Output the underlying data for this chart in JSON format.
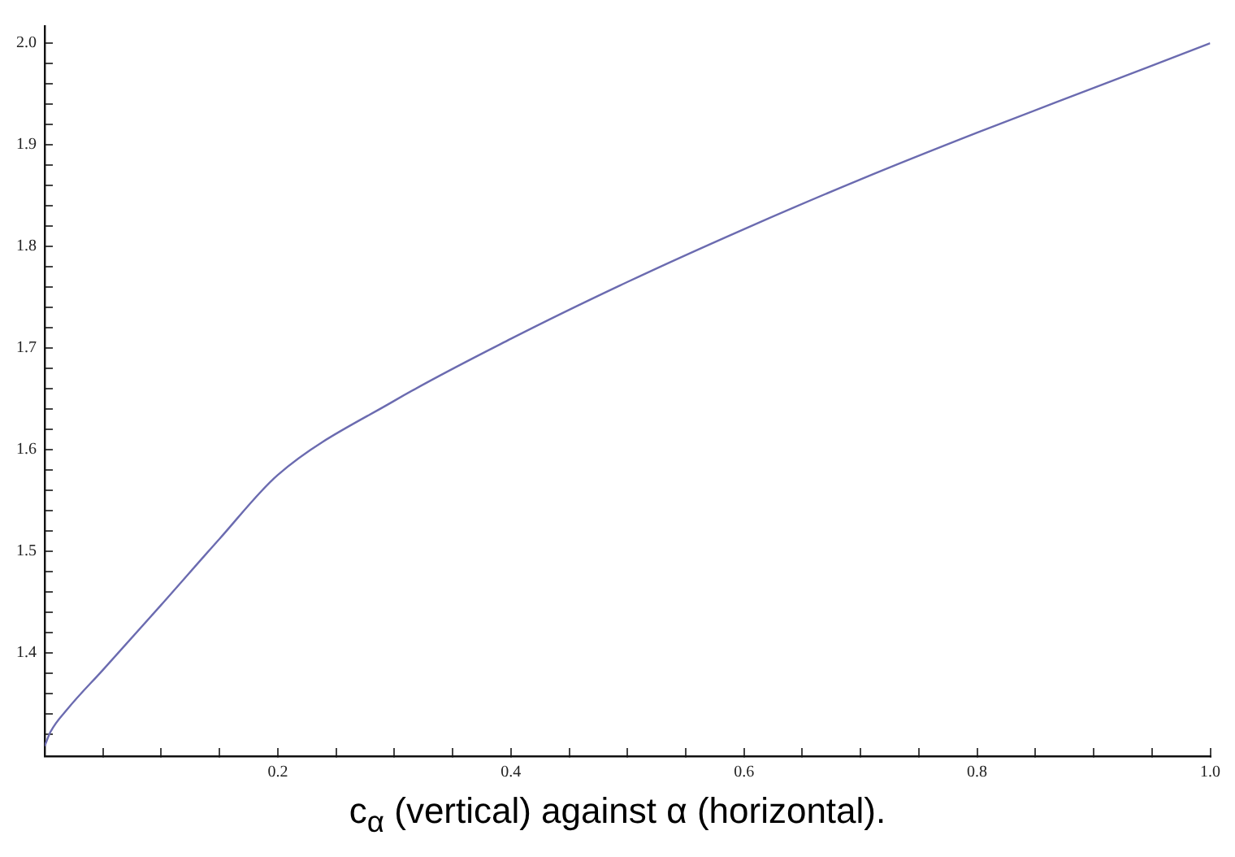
{
  "chart_data": {
    "type": "line",
    "annotations": [
      "c$_{α}$ (vertical) against α (horizontal)."
    ],
    "x": [
      0,
      0.005,
      0.02,
      0.05,
      0.1,
      0.15,
      0.2,
      0.3,
      0.4,
      0.5,
      0.6,
      0.7,
      0.8,
      0.9,
      1.0
    ],
    "series": [
      {
        "color": "#6b6bb0",
        "values": [
          1.308,
          1.322,
          1.345,
          1.383,
          1.447,
          1.512,
          1.575,
          1.648,
          1.709,
          1.765,
          1.817,
          1.866,
          1.912,
          1.956,
          2.0
        ]
      }
    ],
    "xlim": [
      0,
      1.0
    ],
    "ylim": [
      1.298,
      2.017
    ],
    "xticks": [
      {
        "value": 0.05,
        "label": null
      },
      {
        "value": 0.1,
        "label": null
      },
      {
        "value": 0.15,
        "label": null
      },
      {
        "value": 0.2,
        "label": "0.2"
      },
      {
        "value": 0.25,
        "label": null
      },
      {
        "value": 0.3,
        "label": null
      },
      {
        "value": 0.35,
        "label": null
      },
      {
        "value": 0.4,
        "label": "0.4"
      },
      {
        "value": 0.45,
        "label": null
      },
      {
        "value": 0.5,
        "label": null
      },
      {
        "value": 0.55,
        "label": null
      },
      {
        "value": 0.6,
        "label": "0.6"
      },
      {
        "value": 0.65,
        "label": null
      },
      {
        "value": 0.7,
        "label": null
      },
      {
        "value": 0.75,
        "label": null
      },
      {
        "value": 0.8,
        "label": "0.8"
      },
      {
        "value": 0.85,
        "label": null
      },
      {
        "value": 0.9,
        "label": null
      },
      {
        "value": 0.95,
        "label": null
      },
      {
        "value": 1.0,
        "label": "1.0"
      }
    ],
    "yticks": [
      {
        "value": 1.32,
        "label": null
      },
      {
        "value": 1.34,
        "label": null
      },
      {
        "value": 1.36,
        "label": null
      },
      {
        "value": 1.38,
        "label": null
      },
      {
        "value": 1.4,
        "label": "1.4"
      },
      {
        "value": 1.42,
        "label": null
      },
      {
        "value": 1.44,
        "label": null
      },
      {
        "value": 1.46,
        "label": null
      },
      {
        "value": 1.48,
        "label": null
      },
      {
        "value": 1.5,
        "label": "1.5"
      },
      {
        "value": 1.52,
        "label": null
      },
      {
        "value": 1.54,
        "label": null
      },
      {
        "value": 1.56,
        "label": null
      },
      {
        "value": 1.58,
        "label": null
      },
      {
        "value": 1.6,
        "label": "1.6"
      },
      {
        "value": 1.62,
        "label": null
      },
      {
        "value": 1.64,
        "label": null
      },
      {
        "value": 1.66,
        "label": null
      },
      {
        "value": 1.68,
        "label": null
      },
      {
        "value": 1.7,
        "label": "1.7"
      },
      {
        "value": 1.72,
        "label": null
      },
      {
        "value": 1.74,
        "label": null
      },
      {
        "value": 1.76,
        "label": null
      },
      {
        "value": 1.78,
        "label": null
      },
      {
        "value": 1.8,
        "label": "1.8"
      },
      {
        "value": 1.82,
        "label": null
      },
      {
        "value": 1.84,
        "label": null
      },
      {
        "value": 1.86,
        "label": null
      },
      {
        "value": 1.88,
        "label": null
      },
      {
        "value": 1.9,
        "label": "1.9"
      },
      {
        "value": 1.92,
        "label": null
      },
      {
        "value": 1.94,
        "label": null
      },
      {
        "value": 1.96,
        "label": null
      },
      {
        "value": 1.98,
        "label": null
      },
      {
        "value": 2.0,
        "label": "2.0"
      }
    ],
    "grid": false,
    "legend": false,
    "marker": "none",
    "line_style": "solid"
  }
}
